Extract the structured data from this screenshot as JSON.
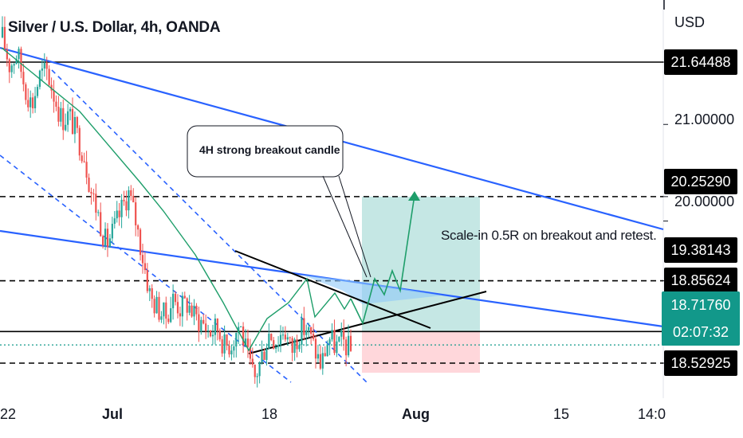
{
  "title": "Silver / U.S. Dollar, 4h, OANDA",
  "currency": "USD",
  "price_axis": {
    "labeled_levels": [
      "21.64488",
      "20.25290",
      "19.38143",
      "18.85624",
      "18.52925"
    ],
    "plain_ticks": [
      "21.00000",
      "20.00000"
    ],
    "current_price": "18.71760",
    "countdown": "02:07:32"
  },
  "time_axis": {
    "ticks": [
      "22",
      "Jul",
      "18",
      "Aug",
      "15",
      "14:0"
    ]
  },
  "annotations": {
    "callout": "4H strong breakout candle",
    "note": "Scale-in 0.5R on breakout and retest."
  },
  "colors": {
    "up_candle": "#26a69a",
    "down_candle": "#ef5350",
    "channel_line": "#2962ff",
    "target_zone": "#b2dfdb",
    "stop_zone": "#ffcdd2",
    "current_price": "#12988a"
  },
  "chart_data": {
    "type": "candlestick",
    "title": "Silver / U.S. Dollar, 4h, OANDA",
    "ylabel": "USD",
    "ylim": [
      18.25,
      22.2
    ],
    "x_ticks": [
      "22",
      "Jul",
      "18",
      "Aug",
      "15",
      "14:0"
    ],
    "horizontal_levels": [
      {
        "price": 21.64488,
        "style": "solid"
      },
      {
        "price": 20.2529,
        "style": "dashed"
      },
      {
        "price": 19.38143,
        "style": "dashed"
      },
      {
        "price": 18.85624,
        "style": "solid"
      },
      {
        "price": 18.52925,
        "style": "dashed"
      }
    ],
    "current_price": 18.7176,
    "trade_plan": {
      "entry": 18.85624,
      "stop": 18.52925,
      "target": 20.2529,
      "note": "Scale-in 0.5R on breakout and retest."
    },
    "close_path": [
      21.9,
      21.6,
      21.75,
      21.4,
      21.2,
      21.5,
      21.55,
      21.3,
      21.05,
      21.1,
      20.9,
      20.7,
      20.3,
      20.05,
      19.75,
      19.9,
      20.1,
      20.3,
      20.0,
      19.6,
      19.2,
      19.1,
      19.0,
      19.2,
      19.1,
      19.15,
      19.0,
      18.95,
      18.85,
      18.9,
      18.7,
      18.75,
      18.95,
      18.6,
      18.35,
      18.6,
      18.85,
      18.75,
      18.9,
      18.65,
      18.85,
      18.9,
      18.7,
      18.5,
      18.8,
      18.7,
      18.75,
      18.65
    ]
  }
}
